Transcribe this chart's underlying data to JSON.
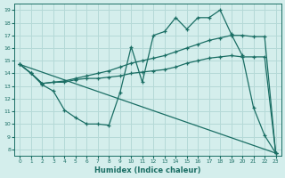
{
  "xlabel": "Humidex (Indice chaleur)",
  "bg_color": "#d4eeec",
  "grid_color": "#b5d9d7",
  "line_color": "#1a6e64",
  "xlim": [
    -0.5,
    23.5
  ],
  "ylim": [
    7.5,
    19.5
  ],
  "xticks": [
    0,
    1,
    2,
    3,
    4,
    5,
    6,
    7,
    8,
    9,
    10,
    11,
    12,
    13,
    14,
    15,
    16,
    17,
    18,
    19,
    20,
    21,
    22,
    23
  ],
  "yticks": [
    8,
    9,
    10,
    11,
    12,
    13,
    14,
    15,
    16,
    17,
    18,
    19
  ],
  "series": [
    {
      "x": [
        0,
        1,
        2,
        3,
        4,
        5,
        6,
        7,
        8,
        9,
        10,
        11,
        12,
        13,
        14,
        15,
        16,
        17,
        18,
        19,
        20,
        21,
        22,
        23
      ],
      "y": [
        14.7,
        14.0,
        13.2,
        13.3,
        13.3,
        13.5,
        13.6,
        13.6,
        13.7,
        13.8,
        14.0,
        14.1,
        14.2,
        14.3,
        14.5,
        14.8,
        15.0,
        15.2,
        15.3,
        15.4,
        15.3,
        15.3,
        15.3,
        7.7
      ]
    },
    {
      "x": [
        0,
        1,
        2,
        3,
        4,
        5,
        6,
        7,
        8,
        9,
        10,
        11,
        12,
        13,
        14,
        15,
        16,
        17,
        18,
        19,
        20,
        21,
        22,
        23
      ],
      "y": [
        14.7,
        14.0,
        13.2,
        13.3,
        13.4,
        13.6,
        13.8,
        14.0,
        14.2,
        14.5,
        14.8,
        15.0,
        15.2,
        15.4,
        15.7,
        16.0,
        16.3,
        16.6,
        16.8,
        17.0,
        17.0,
        16.9,
        16.9,
        7.7
      ]
    },
    {
      "x": [
        0,
        1,
        2,
        3,
        4,
        5,
        6,
        7,
        8,
        9,
        10,
        11,
        12,
        13,
        14,
        15,
        16,
        17,
        18,
        19,
        20,
        21,
        22,
        23
      ],
      "y": [
        14.7,
        14.0,
        13.1,
        12.6,
        11.1,
        10.5,
        10.0,
        10.0,
        9.9,
        12.5,
        16.1,
        13.3,
        17.0,
        17.3,
        18.4,
        17.5,
        18.4,
        18.4,
        19.0,
        17.1,
        15.4,
        11.3,
        9.1,
        7.7
      ]
    },
    {
      "x": [
        0,
        23
      ],
      "y": [
        14.7,
        7.7
      ]
    }
  ]
}
